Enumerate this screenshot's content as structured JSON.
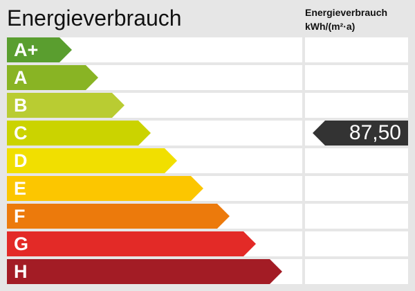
{
  "title": "Energieverbrauch",
  "column_header": {
    "line1": "Energieverbrauch",
    "line2": "kWh/(m²·a)"
  },
  "classes": [
    {
      "label": "A+",
      "color": "#5a9e2f"
    },
    {
      "label": "A",
      "color": "#89b424"
    },
    {
      "label": "B",
      "color": "#b9cc32"
    },
    {
      "label": "C",
      "color": "#cbd300"
    },
    {
      "label": "D",
      "color": "#f1df00"
    },
    {
      "label": "E",
      "color": "#fcc600"
    },
    {
      "label": "F",
      "color": "#ec7a0c"
    },
    {
      "label": "G",
      "color": "#e32a27"
    },
    {
      "label": "H",
      "color": "#a31c25"
    }
  ],
  "indicator": {
    "value": "87,50",
    "class": "C",
    "color": "#333333"
  }
}
